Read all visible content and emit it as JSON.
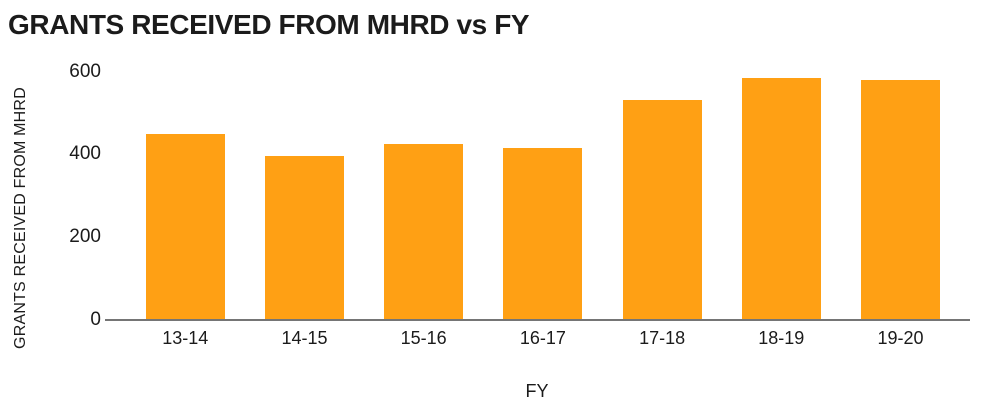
{
  "title": "GRANTS RECEIVED FROM MHRD vs FY",
  "colors": {
    "bar": "#FFA014",
    "axis_line": "#757575",
    "text": "#1B1B1B",
    "background": "#FFFFFF"
  },
  "chart_data": {
    "type": "bar",
    "title": "GRANTS RECEIVED FROM MHRD vs FY",
    "xlabel": "FY",
    "ylabel": "GRANTS RECEIVED FROM MHRD",
    "categories": [
      "13-14",
      "14-15",
      "15-16",
      "16-17",
      "17-18",
      "18-19",
      "19-20"
    ],
    "values": [
      450,
      395,
      425,
      415,
      530,
      585,
      580
    ],
    "ylim": [
      0,
      600
    ],
    "yticks": [
      0,
      200,
      400,
      600
    ],
    "grid": false,
    "legend": null,
    "bar_color": "#FFA014"
  }
}
